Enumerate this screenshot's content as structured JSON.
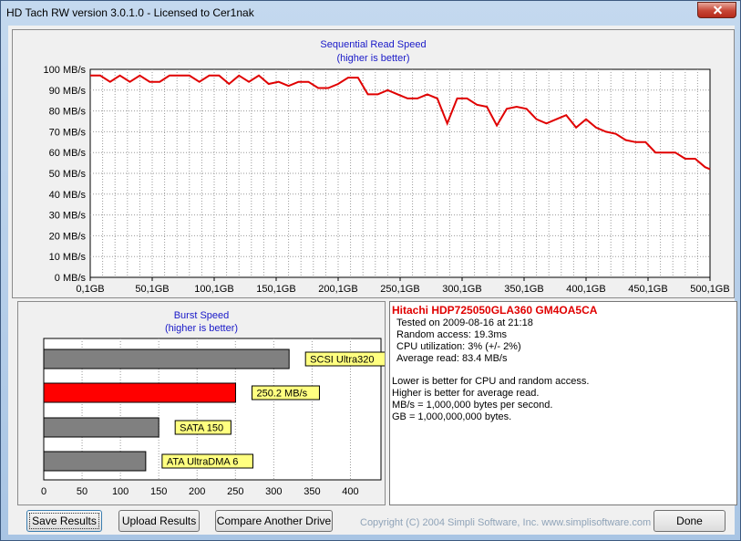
{
  "window": {
    "title": "HD Tach RW version 3.0.1.0 - Licensed to Cer1nak"
  },
  "sequential": {
    "title": "Sequential Read Speed",
    "subtitle": "(higher is better)"
  },
  "burst": {
    "title": "Burst Speed",
    "subtitle": "(higher is better)"
  },
  "info": {
    "drive": "Hitachi HDP725050GLA360 GM4OA5CA",
    "tested": "Tested on 2009-08-16 at 21:18",
    "random_access": "Random access: 19.3ms",
    "cpu": "CPU utilization: 3% (+/- 2%)",
    "avg_read": "Average read: 83.4 MB/s",
    "note1": "Lower is better for CPU and random access.",
    "note2": "Higher is better for average read.",
    "note3": "MB/s = 1,000,000 bytes per second.",
    "note4": "GB = 1,000,000,000 bytes."
  },
  "buttons": {
    "save": "Save Results",
    "upload": "Upload Results",
    "compare": "Compare Another Drive",
    "done": "Done"
  },
  "footer": {
    "copyright": "Copyright (C) 2004 Simpli Software, Inc. www.simplisoftware.com"
  },
  "chart_data": [
    {
      "type": "line",
      "title": "Sequential Read Speed",
      "subtitle": "(higher is better)",
      "xlim": [
        0,
        500
      ],
      "ylim": [
        0,
        100
      ],
      "xticks": [
        "0,1GB",
        "50,1GB",
        "100,1GB",
        "150,1GB",
        "200,1GB",
        "250,1GB",
        "300,1GB",
        "350,1GB",
        "400,1GB",
        "450,1GB",
        "500,1GB"
      ],
      "yticks": [
        "0 MB/s",
        "10 MB/s",
        "20 MB/s",
        "30 MB/s",
        "40 MB/s",
        "50 MB/s",
        "60 MB/s",
        "70 MB/s",
        "80 MB/s",
        "90 MB/s",
        "100 MB/s"
      ],
      "grid": true,
      "color": "#e00000",
      "x": [
        0,
        8,
        16,
        24,
        32,
        40,
        48,
        56,
        64,
        72,
        80,
        88,
        96,
        104,
        112,
        120,
        128,
        136,
        144,
        152,
        160,
        168,
        176,
        184,
        192,
        200,
        208,
        216,
        224,
        232,
        240,
        248,
        256,
        264,
        272,
        280,
        288,
        296,
        304,
        312,
        320,
        328,
        336,
        344,
        352,
        360,
        368,
        376,
        384,
        392,
        400,
        408,
        416,
        424,
        432,
        440,
        448,
        456,
        464,
        472,
        480,
        488,
        496,
        500
      ],
      "y": [
        97,
        97,
        94,
        97,
        94,
        97,
        94,
        94,
        97,
        97,
        97,
        94,
        97,
        97,
        93,
        97,
        94,
        97,
        93,
        94,
        92,
        94,
        94,
        91,
        91,
        93,
        96,
        96,
        88,
        88,
        90,
        88,
        86,
        86,
        88,
        86,
        74,
        86,
        86,
        83,
        82,
        73,
        81,
        82,
        81,
        76,
        74,
        76,
        78,
        72,
        76,
        72,
        70,
        69,
        66,
        65,
        65,
        60,
        60,
        60,
        57,
        57,
        53,
        52
      ]
    },
    {
      "type": "bar",
      "orientation": "horizontal",
      "title": "Burst Speed",
      "subtitle": "(higher is better)",
      "xlim": [
        0,
        450
      ],
      "xticks": [
        "0",
        "50",
        "100",
        "150",
        "200",
        "250",
        "300",
        "350",
        "400"
      ],
      "categories": [
        "SCSI Ultra320",
        "250.2 MB/s",
        "SATA 150",
        "ATA UltraDMA 6"
      ],
      "values": [
        320,
        250.2,
        150,
        133
      ],
      "colors": [
        "#808080",
        "#ff0000",
        "#808080",
        "#808080"
      ],
      "label_color": "#ffff80"
    }
  ]
}
